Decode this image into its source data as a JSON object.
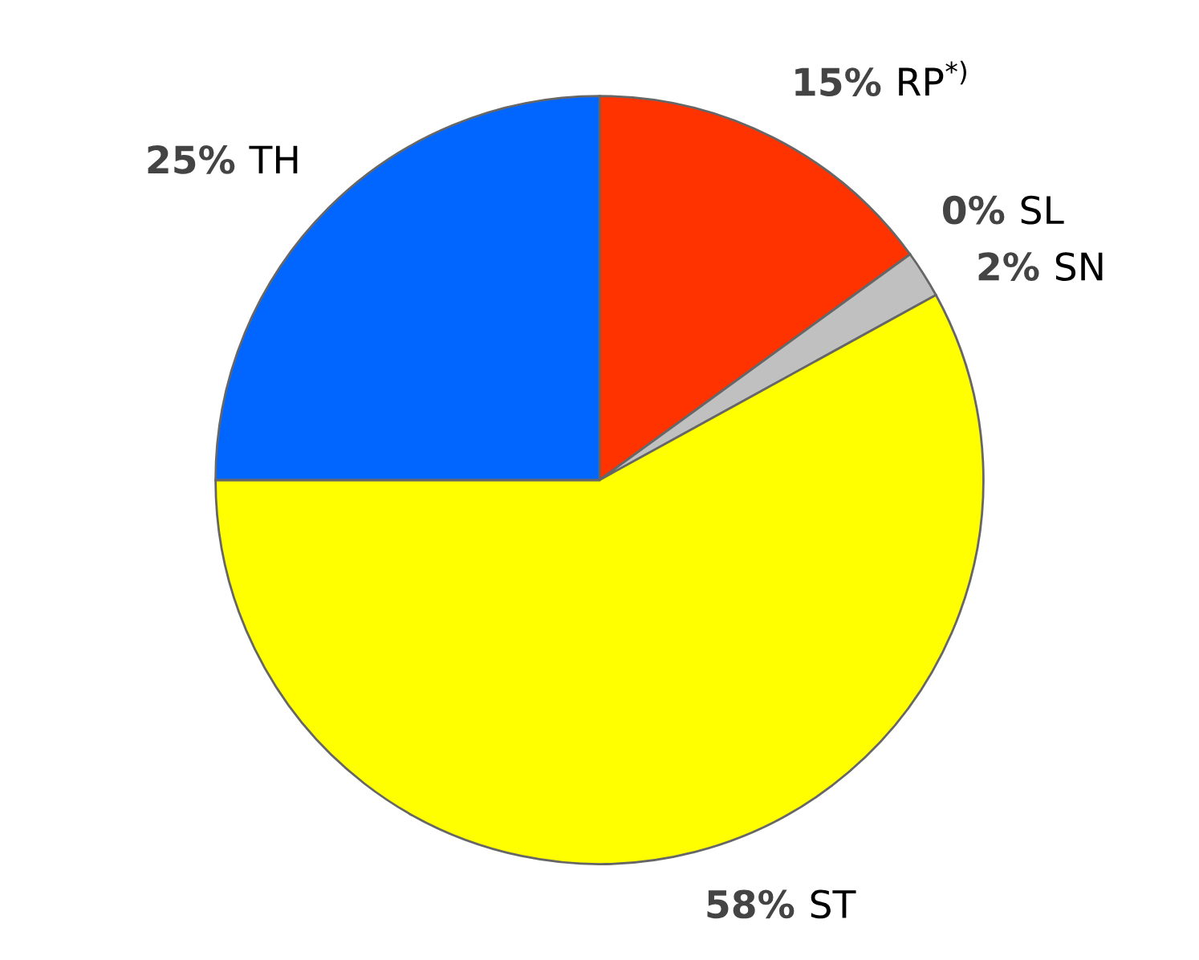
{
  "chart_data": {
    "type": "pie",
    "categories": [
      "RP$^{*)}$",
      "SL",
      "SN",
      "ST",
      "TH"
    ],
    "values": [
      15,
      0,
      2,
      58,
      25
    ],
    "value_labels": [
      "15%",
      "0%",
      "2%",
      "58%",
      "25%"
    ],
    "colors": [
      "#ff3300",
      "#008b8b",
      "#c0c0c0",
      "#ffff00",
      "#0066ff"
    ]
  }
}
